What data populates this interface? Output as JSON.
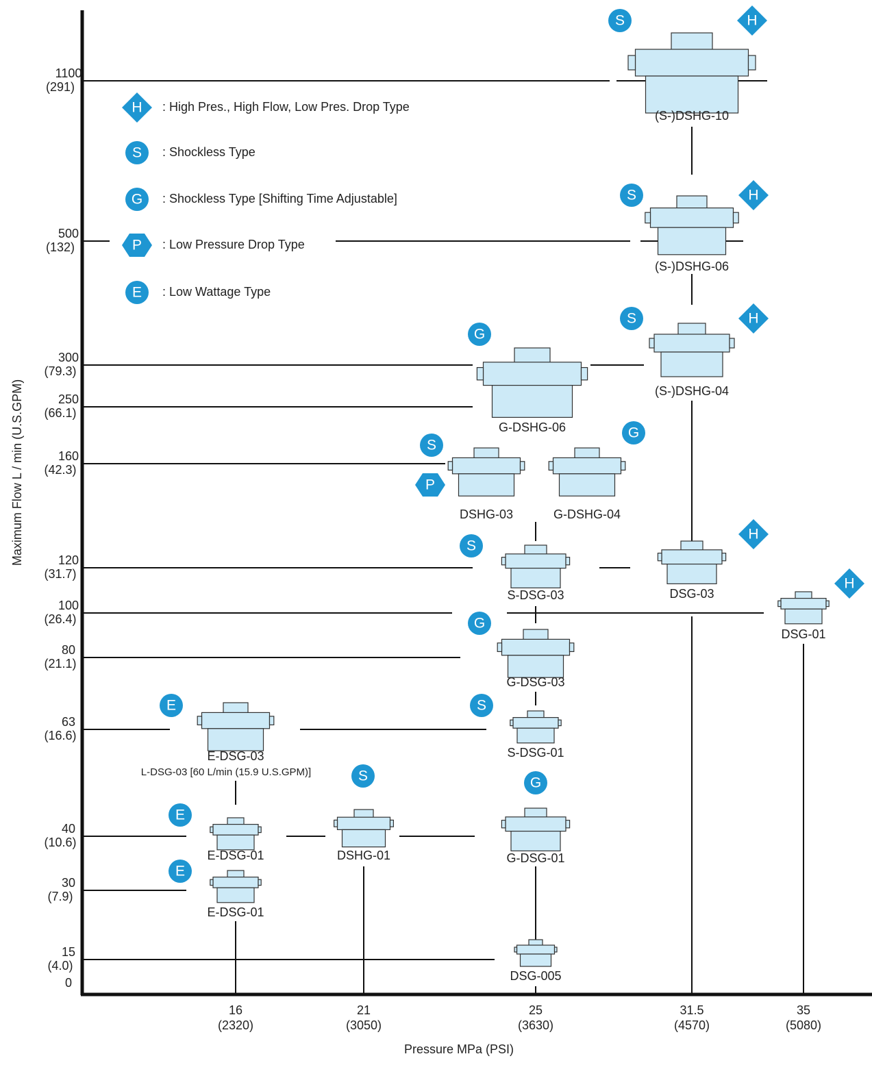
{
  "axes": {
    "y_title": "Maximum Flow   L / min (U.S.GPM)",
    "x_title": "Pressure   MPa (PSI)",
    "origin": "0",
    "y_ticks": [
      [
        "1100",
        "(291)"
      ],
      [
        "500",
        "(132)"
      ],
      [
        "300",
        "(79.3)"
      ],
      [
        "250",
        "(66.1)"
      ],
      [
        "160",
        "(42.3)"
      ],
      [
        "120",
        "(31.7)"
      ],
      [
        "100",
        "(26.4)"
      ],
      [
        "80",
        "(21.1)"
      ],
      [
        "63",
        "(16.6)"
      ],
      [
        "40",
        "(10.6)"
      ],
      [
        "30",
        "(7.9)"
      ],
      [
        "15",
        "(4.0)"
      ]
    ],
    "x_ticks": [
      [
        "16",
        "(2320)"
      ],
      [
        "21",
        "(3050)"
      ],
      [
        "25",
        "(3630)"
      ],
      [
        "31.5",
        "(4570)"
      ],
      [
        "35",
        "(5080)"
      ]
    ]
  },
  "legend": [
    {
      "badge": "H",
      "text": ": High Pres.,  High Flow, Low Pres.  Drop Type"
    },
    {
      "badge": "S",
      "text": ": Shockless Type"
    },
    {
      "badge": "G",
      "text": ": Shockless Type [Shifting Time Adjustable]"
    },
    {
      "badge": "P",
      "text": ": Low Pressure Drop Type"
    },
    {
      "badge": "E",
      "text": ": Low Wattage Type"
    }
  ],
  "nodes": [
    {
      "label": "(S-)DSHG-10",
      "badges": [
        "S",
        "H"
      ]
    },
    {
      "label": "(S-)DSHG-06",
      "badges": [
        "S",
        "H"
      ]
    },
    {
      "label": "(S-)DSHG-04",
      "badges": [
        "S",
        "H"
      ]
    },
    {
      "label": "G-DSHG-06",
      "badges": [
        "G"
      ]
    },
    {
      "label": "DSHG-03",
      "badges": [
        "S",
        "P"
      ]
    },
    {
      "label": "G-DSHG-04",
      "badges": [
        "G"
      ]
    },
    {
      "label": "S-DSG-03",
      "badges": [
        "S"
      ]
    },
    {
      "label": "DSG-03",
      "badges": [
        "H"
      ]
    },
    {
      "label": "DSG-01",
      "badges": [
        "H"
      ]
    },
    {
      "label": "G-DSG-03",
      "badges": [
        "G"
      ]
    },
    {
      "label": "E-DSG-03",
      "badges": [
        "E"
      ]
    },
    {
      "label": "S-DSG-01",
      "badges": [
        "S"
      ]
    },
    {
      "label": "DSHG-01",
      "badges": [
        "S"
      ]
    },
    {
      "label": "E-DSG-01",
      "badges": [
        "E"
      ]
    },
    {
      "label": "G-DSG-01",
      "badges": [
        "G"
      ]
    },
    {
      "label": "E-DSG-01",
      "badges": [
        "E"
      ]
    },
    {
      "label": "DSG-005",
      "badges": []
    }
  ],
  "note": "L-DSG-03 [60 L/min (15.9 U.S.GPM)]"
}
